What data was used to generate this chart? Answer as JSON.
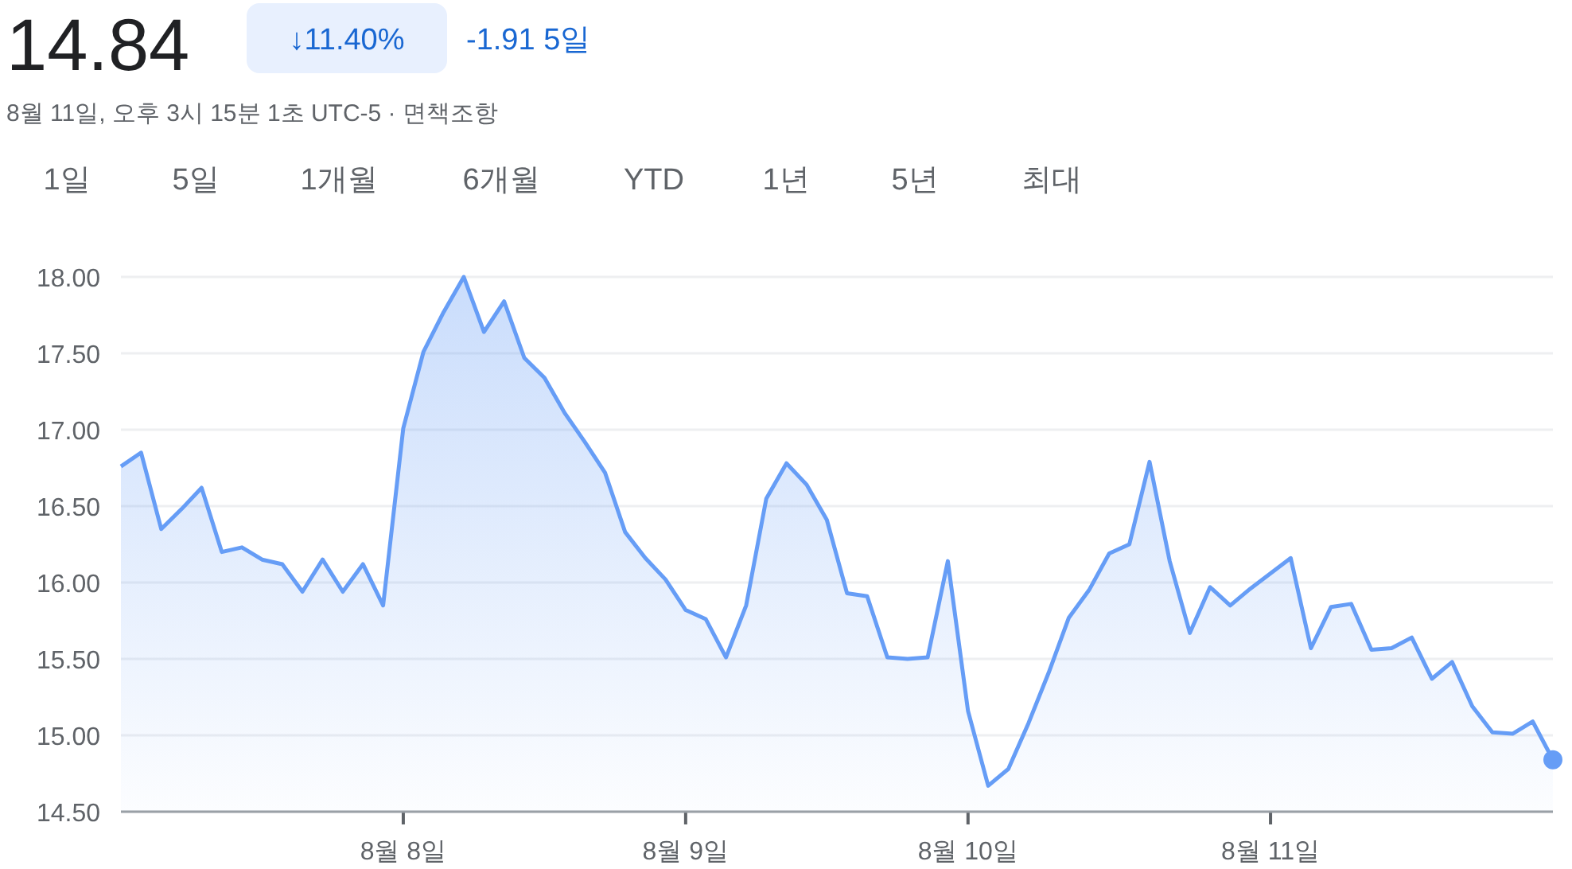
{
  "chart_data": {
    "type": "area",
    "title": "14.84",
    "subtitle": "8월 11일, 오후 3시 15분 1초 UTC-5 · 면책조항",
    "annotations": [
      "↓11.40%",
      "-1.91 5일",
      "1일",
      "5일",
      "1개월",
      "6개월",
      "YTD",
      "1년",
      "5년",
      "최대"
    ],
    "categories": [
      null,
      null,
      null,
      null,
      null,
      null,
      null,
      null,
      null,
      null,
      null,
      null,
      null,
      null,
      "8월 8일",
      null,
      null,
      null,
      null,
      null,
      null,
      null,
      null,
      null,
      null,
      null,
      null,
      null,
      "8월 9일",
      null,
      null,
      null,
      null,
      null,
      null,
      null,
      null,
      null,
      null,
      null,
      null,
      null,
      "8월 10일",
      null,
      null,
      null,
      null,
      null,
      null,
      null,
      null,
      null,
      null,
      null,
      null,
      null,
      null,
      "8월 11일",
      null,
      null,
      null,
      null,
      null,
      null,
      null,
      null,
      null,
      null,
      null,
      null,
      null,
      null
    ],
    "series": [
      {
        "color": "#669df6",
        "values": [
          16.76,
          16.85,
          16.35,
          16.48,
          16.62,
          16.2,
          16.23,
          16.15,
          16.12,
          15.94,
          16.15,
          15.94,
          16.12,
          15.85,
          17.01,
          17.51,
          17.77,
          18.0,
          17.64,
          17.84,
          17.47,
          17.34,
          17.11,
          16.92,
          16.72,
          16.33,
          16.16,
          16.02,
          15.82,
          15.76,
          15.51,
          15.85,
          16.55,
          16.78,
          16.64,
          16.41,
          15.93,
          15.91,
          15.51,
          15.5,
          15.51,
          16.14,
          15.16,
          14.67,
          14.78,
          15.08,
          15.41,
          15.77,
          15.95,
          16.19,
          16.25,
          16.79,
          16.14,
          15.67,
          15.97,
          15.85,
          15.96,
          16.06,
          16.16,
          15.57,
          15.84,
          15.86,
          15.56,
          15.57,
          15.64,
          15.37,
          15.48,
          15.19,
          15.02,
          15.01,
          15.09,
          14.84
        ]
      }
    ],
    "ylim": [
      14.5,
      18.0
    ],
    "yticks": [
      {
        "value": 14.5,
        "label": "14.50"
      },
      {
        "value": 15,
        "label": "15.00"
      },
      {
        "value": 15.5,
        "label": "15.50"
      },
      {
        "value": 16,
        "label": "16.00"
      },
      {
        "value": 16.5,
        "label": "16.50"
      },
      {
        "value": 17,
        "label": "17.00"
      },
      {
        "value": 17.5,
        "label": "17.50"
      },
      {
        "value": 18,
        "label": "18.00"
      }
    ],
    "grid": "y",
    "marker": "none",
    "line_style": "solid"
  }
}
